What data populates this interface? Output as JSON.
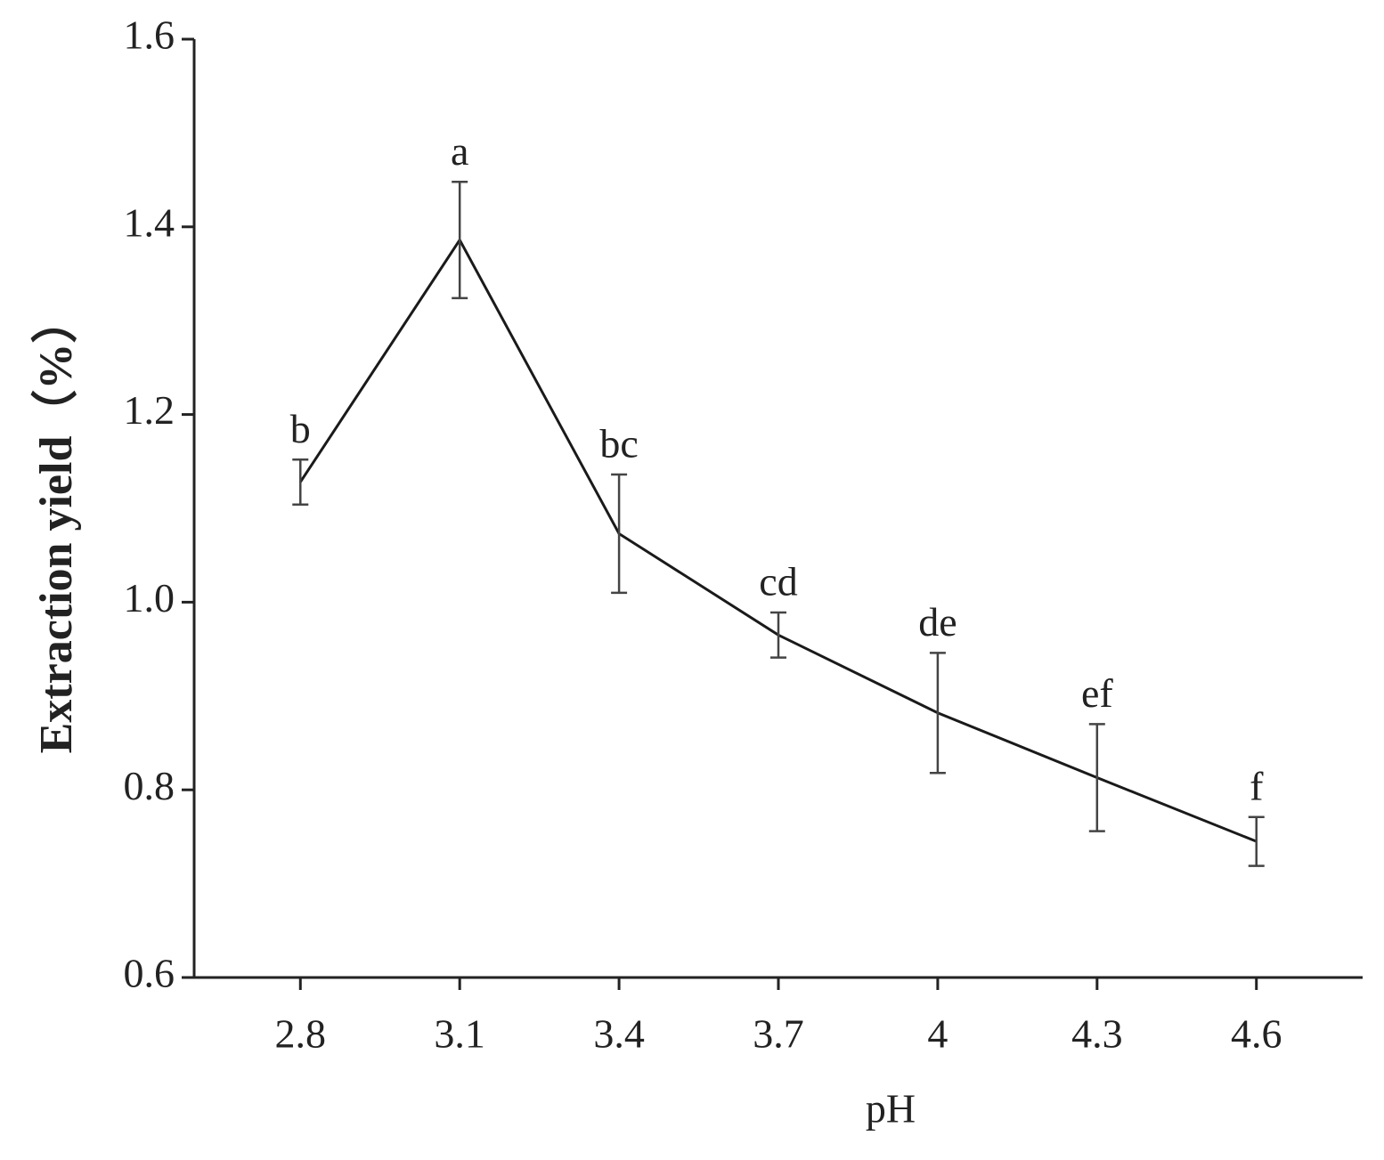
{
  "chart_data": {
    "type": "line",
    "x_label": "pH",
    "y_label": "Extraction yield（%）",
    "x": [
      2.8,
      3.1,
      3.4,
      3.7,
      4,
      4.3,
      4.6
    ],
    "series": [
      {
        "color": "#1a1a1a",
        "values": [
          1.128,
          1.386,
          1.073,
          0.965,
          0.882,
          0.813,
          0.745
        ],
        "errors": [
          0.024,
          0.062,
          0.063,
          0.024,
          0.064,
          0.057,
          0.026
        ],
        "point_labels": [
          "b",
          "a",
          "bc",
          "cd",
          "de",
          "ef",
          "f"
        ]
      }
    ],
    "xlim": [
      2.6,
      4.8
    ],
    "xticks": [
      2.8,
      3.1,
      3.4,
      3.7,
      4,
      4.3,
      4.6
    ],
    "ylim": [
      0.6,
      1.6
    ],
    "yticks": [
      {
        "value": 0.6,
        "label": "0.6"
      },
      {
        "value": 0.8,
        "label": "0.8"
      },
      {
        "value": 1.0,
        "label": "1.0"
      },
      {
        "value": 1.2,
        "label": "1.2"
      },
      {
        "value": 1.4,
        "label": "1.4"
      },
      {
        "value": 1.6,
        "label": "1.6"
      }
    ],
    "grid": false
  }
}
